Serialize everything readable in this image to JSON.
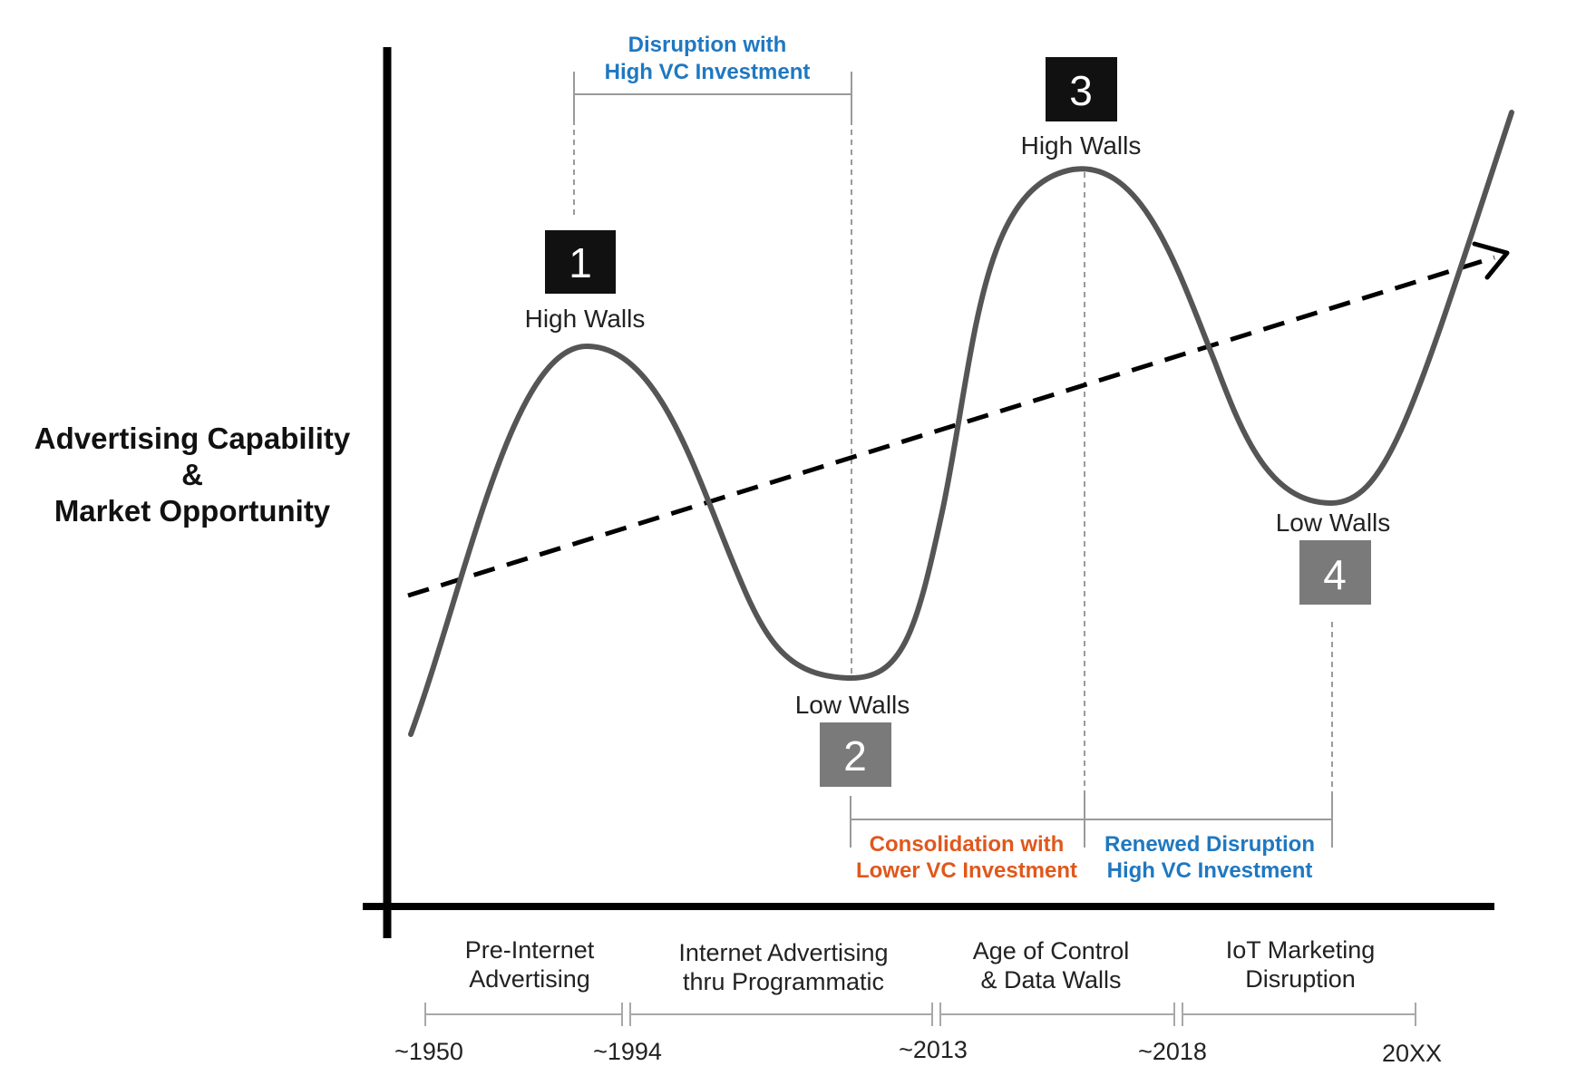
{
  "y_axis_label": [
    "Advertising Capability",
    "&",
    "Market Opportunity"
  ],
  "markers": [
    {
      "number": "1",
      "label": "High Walls",
      "style": "dark"
    },
    {
      "number": "2",
      "label": "Low Walls",
      "style": "gray"
    },
    {
      "number": "3",
      "label": "High Walls",
      "style": "dark"
    },
    {
      "number": "4",
      "label": "Low Walls",
      "style": "gray"
    }
  ],
  "phases": [
    {
      "lines": [
        "Disruption with",
        "High VC Investment"
      ],
      "color": "#1f78c1"
    },
    {
      "lines": [
        "Consolidation with",
        "Lower VC Investment"
      ],
      "color": "#e0581c"
    },
    {
      "lines": [
        "Renewed Disruption",
        "High VC Investment"
      ],
      "color": "#1f78c1"
    }
  ],
  "periods": [
    {
      "lines": [
        "Pre-Internet",
        "Advertising"
      ]
    },
    {
      "lines": [
        "Internet Advertising",
        "thru Programmatic"
      ]
    },
    {
      "lines": [
        "Age of Control",
        "& Data Walls"
      ]
    },
    {
      "lines": [
        "IoT Marketing",
        "Disruption"
      ]
    }
  ],
  "timeline_ticks": [
    "~1950",
    "~1994",
    "~2013",
    "~2018",
    "20XX"
  ],
  "colors": {
    "curve": "#555555",
    "axis": "#000000",
    "dark_marker": "#111111",
    "gray_marker": "#7a7a7a",
    "guide": "#9a9a9a",
    "timeline": "#a8a8a8"
  }
}
